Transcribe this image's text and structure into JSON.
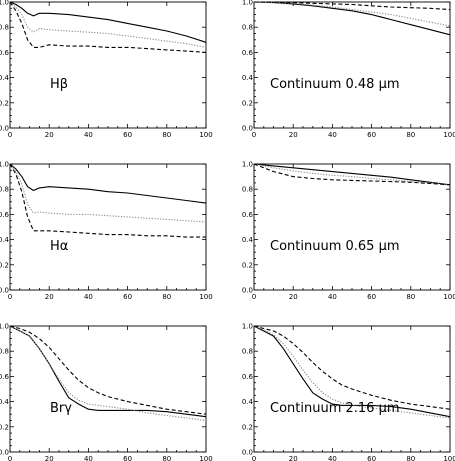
{
  "chart_data": [
    {
      "type": "line",
      "panel_label": "Hβ",
      "xlim": [
        0,
        100
      ],
      "ylim": [
        0,
        1
      ],
      "xticks": [
        "0",
        "20",
        "40",
        "60",
        "80",
        "100"
      ],
      "yticks": [
        "0.0",
        "0.2",
        "0.4",
        "0.6",
        "0.8",
        "1.0"
      ],
      "series": [
        {
          "style": "solid",
          "color": "#000000",
          "x": [
            0,
            3,
            6,
            9,
            12,
            15,
            20,
            30,
            40,
            50,
            60,
            70,
            80,
            90,
            100
          ],
          "y": [
            1.0,
            0.98,
            0.95,
            0.91,
            0.89,
            0.91,
            0.91,
            0.9,
            0.88,
            0.86,
            0.83,
            0.8,
            0.77,
            0.73,
            0.68
          ]
        },
        {
          "style": "dotted",
          "color": "#888888",
          "x": [
            0,
            3,
            6,
            9,
            12,
            15,
            20,
            30,
            40,
            50,
            60,
            70,
            80,
            90,
            100
          ],
          "y": [
            1.0,
            0.96,
            0.9,
            0.8,
            0.76,
            0.79,
            0.78,
            0.77,
            0.76,
            0.75,
            0.73,
            0.71,
            0.69,
            0.67,
            0.64
          ]
        },
        {
          "style": "dashed",
          "color": "#000000",
          "x": [
            0,
            3,
            6,
            9,
            12,
            15,
            20,
            30,
            40,
            50,
            60,
            70,
            80,
            90,
            100
          ],
          "y": [
            1.0,
            0.93,
            0.83,
            0.7,
            0.64,
            0.64,
            0.66,
            0.65,
            0.65,
            0.64,
            0.64,
            0.63,
            0.62,
            0.61,
            0.6
          ]
        }
      ]
    },
    {
      "type": "line",
      "panel_label": "Continuum 0.48 μm",
      "xlim": [
        0,
        100
      ],
      "ylim": [
        0,
        1
      ],
      "xticks": [
        "0",
        "20",
        "40",
        "60",
        "80",
        "100"
      ],
      "yticks": [
        "0.0",
        "0.2",
        "0.4",
        "0.6",
        "0.8",
        "1.0"
      ],
      "series": [
        {
          "style": "solid",
          "color": "#000000",
          "x": [
            0,
            10,
            20,
            30,
            40,
            50,
            60,
            70,
            80,
            90,
            100
          ],
          "y": [
            1.0,
            0.995,
            0.985,
            0.97,
            0.95,
            0.93,
            0.9,
            0.86,
            0.82,
            0.78,
            0.74
          ]
        },
        {
          "style": "dotted",
          "color": "#888888",
          "x": [
            0,
            10,
            20,
            30,
            40,
            50,
            60,
            70,
            80,
            90,
            100
          ],
          "y": [
            1.0,
            0.995,
            0.99,
            0.975,
            0.96,
            0.94,
            0.92,
            0.9,
            0.87,
            0.84,
            0.81
          ]
        },
        {
          "style": "dashed",
          "color": "#000000",
          "x": [
            0,
            10,
            20,
            30,
            40,
            50,
            60,
            70,
            80,
            90,
            100
          ],
          "y": [
            1.0,
            1.0,
            0.995,
            0.99,
            0.985,
            0.98,
            0.97,
            0.96,
            0.955,
            0.95,
            0.94
          ]
        }
      ]
    },
    {
      "type": "line",
      "panel_label": "Hα",
      "xlim": [
        0,
        100
      ],
      "ylim": [
        0,
        1
      ],
      "xticks": [
        "0",
        "20",
        "40",
        "60",
        "80",
        "100"
      ],
      "yticks": [
        "0.0",
        "0.2",
        "0.4",
        "0.6",
        "0.8",
        "1.0"
      ],
      "series": [
        {
          "style": "solid",
          "color": "#000000",
          "x": [
            0,
            3,
            6,
            9,
            12,
            15,
            20,
            30,
            40,
            50,
            60,
            70,
            80,
            90,
            100
          ],
          "y": [
            1.0,
            0.96,
            0.9,
            0.82,
            0.79,
            0.81,
            0.82,
            0.81,
            0.8,
            0.78,
            0.77,
            0.75,
            0.73,
            0.71,
            0.69
          ]
        },
        {
          "style": "dotted",
          "color": "#888888",
          "x": [
            0,
            3,
            6,
            9,
            12,
            15,
            20,
            30,
            40,
            50,
            60,
            70,
            80,
            90,
            100
          ],
          "y": [
            1.0,
            0.94,
            0.84,
            0.68,
            0.61,
            0.62,
            0.61,
            0.6,
            0.6,
            0.59,
            0.58,
            0.57,
            0.56,
            0.55,
            0.54
          ]
        },
        {
          "style": "dashed",
          "color": "#000000",
          "x": [
            0,
            3,
            6,
            9,
            12,
            15,
            20,
            30,
            40,
            50,
            60,
            70,
            80,
            90,
            100
          ],
          "y": [
            1.0,
            0.92,
            0.78,
            0.58,
            0.47,
            0.47,
            0.47,
            0.46,
            0.45,
            0.44,
            0.44,
            0.43,
            0.43,
            0.42,
            0.42
          ]
        }
      ]
    },
    {
      "type": "line",
      "panel_label": "Continuum 0.65 μm",
      "xlim": [
        0,
        100
      ],
      "ylim": [
        0,
        1
      ],
      "xticks": [
        "0",
        "20",
        "40",
        "60",
        "80",
        "100"
      ],
      "yticks": [
        "0.0",
        "0.2",
        "0.4",
        "0.6",
        "0.8",
        "1.0"
      ],
      "series": [
        {
          "style": "solid",
          "color": "#000000",
          "x": [
            0,
            10,
            20,
            30,
            40,
            50,
            60,
            70,
            80,
            90,
            100
          ],
          "y": [
            1.0,
            0.985,
            0.97,
            0.955,
            0.94,
            0.925,
            0.91,
            0.895,
            0.875,
            0.855,
            0.835
          ]
        },
        {
          "style": "dotted",
          "color": "#888888",
          "x": [
            0,
            10,
            20,
            30,
            40,
            50,
            60,
            70,
            80,
            90,
            100
          ],
          "y": [
            1.0,
            0.97,
            0.945,
            0.925,
            0.91,
            0.9,
            0.885,
            0.875,
            0.86,
            0.85,
            0.835
          ]
        },
        {
          "style": "dashed",
          "color": "#000000",
          "x": [
            0,
            10,
            20,
            30,
            40,
            50,
            60,
            70,
            80,
            90,
            100
          ],
          "y": [
            1.0,
            0.94,
            0.9,
            0.885,
            0.875,
            0.87,
            0.865,
            0.86,
            0.855,
            0.845,
            0.835
          ]
        }
      ]
    },
    {
      "type": "line",
      "panel_label": "Brγ",
      "xlim": [
        0,
        100
      ],
      "ylim": [
        0,
        1
      ],
      "xticks": [
        "0",
        "20",
        "40",
        "60",
        "80",
        "100"
      ],
      "yticks": [
        "0.0",
        "0.2",
        "0.4",
        "0.6",
        "0.8",
        "1.0"
      ],
      "series": [
        {
          "style": "solid",
          "color": "#000000",
          "x": [
            0,
            5,
            10,
            15,
            20,
            25,
            30,
            35,
            40,
            45,
            50,
            60,
            70,
            80,
            90,
            100
          ],
          "y": [
            1.0,
            0.96,
            0.92,
            0.82,
            0.7,
            0.56,
            0.43,
            0.38,
            0.34,
            0.33,
            0.33,
            0.33,
            0.33,
            0.32,
            0.3,
            0.28
          ]
        },
        {
          "style": "dotted",
          "color": "#888888",
          "x": [
            0,
            5,
            10,
            15,
            20,
            25,
            30,
            35,
            40,
            45,
            50,
            60,
            70,
            80,
            90,
            100
          ],
          "y": [
            1.0,
            0.96,
            0.92,
            0.82,
            0.7,
            0.58,
            0.47,
            0.41,
            0.38,
            0.37,
            0.36,
            0.34,
            0.31,
            0.29,
            0.27,
            0.25
          ]
        },
        {
          "style": "dashed",
          "color": "#000000",
          "x": [
            0,
            5,
            10,
            15,
            20,
            25,
            30,
            35,
            40,
            45,
            50,
            60,
            70,
            80,
            90,
            100
          ],
          "y": [
            1.0,
            0.98,
            0.95,
            0.9,
            0.83,
            0.74,
            0.65,
            0.57,
            0.51,
            0.47,
            0.44,
            0.4,
            0.37,
            0.34,
            0.32,
            0.3
          ]
        }
      ]
    },
    {
      "type": "line",
      "panel_label": "Continuum 2.16 μm",
      "xlim": [
        0,
        100
      ],
      "ylim": [
        0,
        1
      ],
      "xticks": [
        "0",
        "20",
        "40",
        "60",
        "80",
        "100"
      ],
      "yticks": [
        "0.0",
        "0.2",
        "0.4",
        "0.6",
        "0.8",
        "1.0"
      ],
      "series": [
        {
          "style": "solid",
          "color": "#000000",
          "x": [
            0,
            5,
            10,
            15,
            20,
            25,
            30,
            35,
            40,
            45,
            50,
            60,
            70,
            80,
            90,
            100
          ],
          "y": [
            1.0,
            0.96,
            0.92,
            0.82,
            0.7,
            0.58,
            0.47,
            0.42,
            0.38,
            0.37,
            0.37,
            0.37,
            0.36,
            0.34,
            0.31,
            0.28
          ]
        },
        {
          "style": "dotted",
          "color": "#888888",
          "x": [
            0,
            5,
            10,
            15,
            20,
            25,
            30,
            35,
            40,
            45,
            50,
            60,
            70,
            80,
            90,
            100
          ],
          "y": [
            1.0,
            0.97,
            0.93,
            0.86,
            0.76,
            0.65,
            0.55,
            0.47,
            0.42,
            0.39,
            0.37,
            0.35,
            0.33,
            0.31,
            0.29,
            0.27
          ]
        },
        {
          "style": "dashed",
          "color": "#000000",
          "x": [
            0,
            5,
            10,
            15,
            20,
            25,
            30,
            35,
            40,
            45,
            50,
            60,
            70,
            80,
            90,
            100
          ],
          "y": [
            1.0,
            0.98,
            0.96,
            0.92,
            0.86,
            0.79,
            0.71,
            0.64,
            0.58,
            0.53,
            0.5,
            0.45,
            0.41,
            0.38,
            0.36,
            0.34
          ]
        }
      ]
    }
  ]
}
